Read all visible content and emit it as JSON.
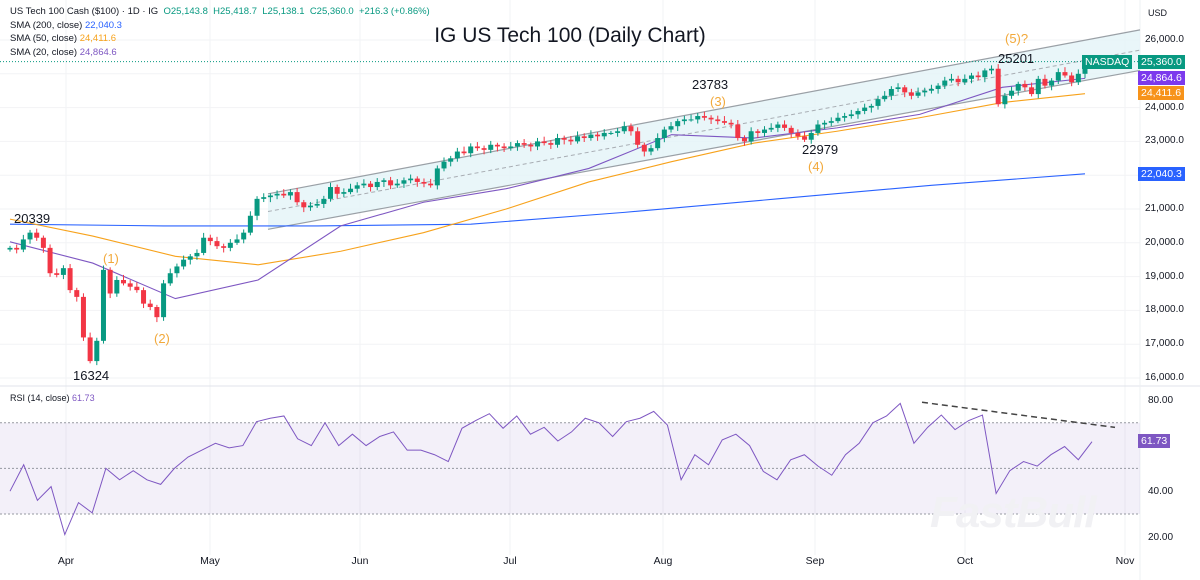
{
  "header": {
    "symbol": "US Tech 100 Cash ($100) · 1D · IG",
    "open": "O25,143.8",
    "high": "H25,418.7",
    "low": "L25,138.1",
    "close": "C25,360.0",
    "change": "+216.3 (+0.86%)",
    "sma200_label": "SMA (200, close)",
    "sma200_value": "22,040.3",
    "sma50_label": "SMA (50, close)",
    "sma50_value": "24,411.6",
    "sma20_label": "SMA (20, close)",
    "sma20_value": "24,864.6"
  },
  "rsi_legend": {
    "label": "RSI (14, close)",
    "value": "61.73"
  },
  "watermark": "FastBull",
  "colors": {
    "up": "#089981",
    "down": "#f23645",
    "sma200": "#2962ff",
    "sma50": "#f7a21b",
    "sma20": "#7e57c2",
    "channel_fill": "#e3f4f8",
    "rsi_line": "#7e57c2"
  },
  "chart_data": [
    {
      "type": "candlestick",
      "title": "IG US Tech 100 (Daily Chart)",
      "currency": "USD",
      "y_ticks": [
        "26,000.0",
        "24,000.0",
        "23,000.0",
        "21,000.0",
        "20,000.0",
        "19,000.0",
        "18,000.0",
        "17,000.0",
        "16,000.0"
      ],
      "ylim": [
        16000,
        26000
      ],
      "x_ticks": [
        "Apr",
        "May",
        "Jun",
        "Jul",
        "Aug",
        "Sep",
        "Oct",
        "Nov"
      ],
      "grid": true,
      "closes": [
        19850,
        19800,
        20100,
        20300,
        20150,
        19850,
        19100,
        19050,
        19250,
        18600,
        18400,
        17200,
        16500,
        17100,
        19200,
        18500,
        18900,
        18800,
        18700,
        18600,
        18200,
        18100,
        17800,
        18800,
        19100,
        19300,
        19500,
        19600,
        19700,
        20150,
        20050,
        19900,
        19850,
        20000,
        20100,
        20300,
        20800,
        21300,
        21350,
        21400,
        21450,
        21400,
        21500,
        21200,
        21050,
        21100,
        21150,
        21300,
        21650,
        21450,
        21500,
        21600,
        21700,
        21750,
        21650,
        21800,
        21850,
        21700,
        21750,
        21850,
        21900,
        21800,
        21750,
        21700,
        22200,
        22400,
        22500,
        22700,
        22650,
        22850,
        22800,
        22750,
        22900,
        22850,
        22800,
        22850,
        22950,
        22900,
        22850,
        23000,
        22950,
        22900,
        23100,
        23050,
        23000,
        23150,
        23100,
        23200,
        23150,
        23250,
        23250,
        23300,
        23450,
        23300,
        22900,
        22700,
        22800,
        23100,
        23350,
        23450,
        23600,
        23650,
        23650,
        23750,
        23700,
        23650,
        23600,
        23550,
        23500,
        23100,
        23000,
        23300,
        23250,
        23350,
        23400,
        23500,
        23400,
        23250,
        23150,
        23050,
        23250,
        23500,
        23550,
        23600,
        23700,
        23750,
        23800,
        23900,
        24000,
        24050,
        24250,
        24350,
        24550,
        24600,
        24450,
        24350,
        24450,
        24500,
        24550,
        24650,
        24800,
        24850,
        24750,
        24850,
        24950,
        24900,
        25100,
        25150,
        24100,
        24350,
        24500,
        24700,
        24600,
        24400,
        24850,
        24650,
        24800,
        25050,
        24950,
        24750,
        25000,
        25360
      ],
      "sma200": [
        20550,
        20500,
        20500,
        20550,
        20900,
        21300,
        21700,
        22040.3
      ],
      "sma50": [
        20700,
        20200,
        19600,
        19350,
        19750,
        20300,
        21000,
        21800,
        22400,
        22950,
        23300,
        23700,
        24150,
        24411.6
      ],
      "sma20": [
        20030,
        19400,
        18350,
        18900,
        20500,
        21200,
        21600,
        22200,
        23200,
        23100,
        23400,
        23800,
        24600,
        24864.6
      ],
      "channel": {
        "upper": [
          21450,
          26300
        ],
        "lower": [
          20400,
          25100
        ]
      },
      "annotations": [
        {
          "text": "20339",
          "kind": "price"
        },
        {
          "text": "16324",
          "kind": "price"
        },
        {
          "text": "(1)",
          "kind": "wave"
        },
        {
          "text": "(2)",
          "kind": "wave"
        },
        {
          "text": "23783",
          "kind": "price"
        },
        {
          "text": "(3)",
          "kind": "wave"
        },
        {
          "text": "22979",
          "kind": "price"
        },
        {
          "text": "(4)",
          "kind": "wave"
        },
        {
          "text": "25201",
          "kind": "price"
        },
        {
          "text": "(5)?",
          "kind": "wave"
        }
      ],
      "price_tags": {
        "exchange": "NASDAQ",
        "last": "25,360.0",
        "sma20": "24,864.6",
        "sma50": "24,411.6",
        "sma200": "22,040.3"
      }
    },
    {
      "type": "line",
      "name": "RSI (14, close)",
      "ylim": [
        15,
        85
      ],
      "y_ticks": [
        "80.00",
        "40.00",
        "20.00"
      ],
      "bands": [
        30,
        50,
        70
      ],
      "values": [
        40,
        51.6,
        36,
        42,
        21,
        35,
        30.5,
        50,
        45,
        49,
        45,
        43,
        50,
        55,
        58,
        61,
        59,
        60,
        70.5,
        72,
        73,
        63,
        60,
        70,
        60,
        65,
        60,
        64,
        66,
        58,
        58,
        56,
        53,
        67.6,
        71,
        74,
        67.6,
        73,
        65,
        68,
        62,
        66,
        72,
        70,
        64,
        70.5,
        72,
        75,
        69,
        45,
        56,
        51.6,
        62.5,
        65,
        60,
        48.7,
        45,
        53.8,
        56,
        51,
        47,
        56,
        61,
        70,
        73,
        78.5,
        61,
        68,
        73.4,
        67,
        71,
        73.4,
        39,
        49,
        53,
        51,
        56,
        59.6,
        53.8,
        61.73
      ],
      "last_value": "61.73",
      "trendline": [
        79,
        68
      ]
    }
  ]
}
